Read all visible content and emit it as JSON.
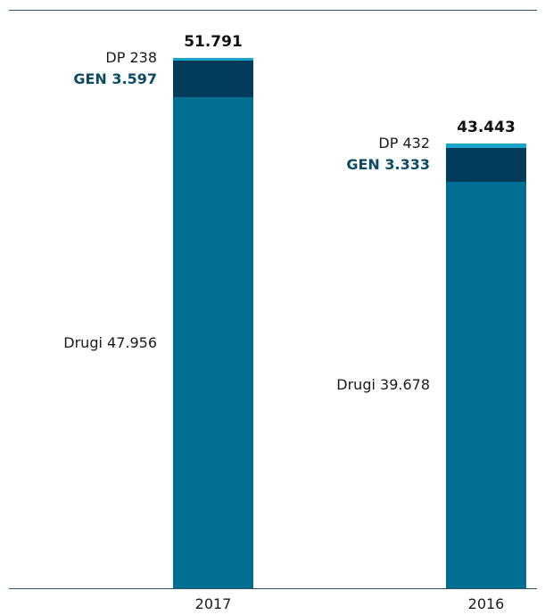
{
  "chart_data": {
    "type": "bar",
    "stacked": true,
    "categories": [
      "2017",
      "2016"
    ],
    "series": [
      {
        "key": "drugi",
        "name": "Drugi",
        "values": [
          47956,
          39678
        ],
        "color": "#016f93"
      },
      {
        "key": "gen",
        "name": "GEN",
        "values": [
          3597,
          3333
        ],
        "color": "#033b5b"
      },
      {
        "key": "dp",
        "name": "DP",
        "values": [
          238,
          432
        ],
        "color": "#18a5c8"
      }
    ],
    "totals": [
      51791,
      43443
    ],
    "grid": false,
    "legend": "none"
  },
  "bars": [
    {
      "year": "2017",
      "total_label": "51.791",
      "dp_label": "DP 238",
      "gen_label": "GEN 3.597",
      "drugi_label": "Drugi 47.956"
    },
    {
      "year": "2016",
      "total_label": "43.443",
      "dp_label": "DP 432",
      "gen_label": "GEN 3.333",
      "drugi_label": "Drugi 39.678"
    }
  ]
}
